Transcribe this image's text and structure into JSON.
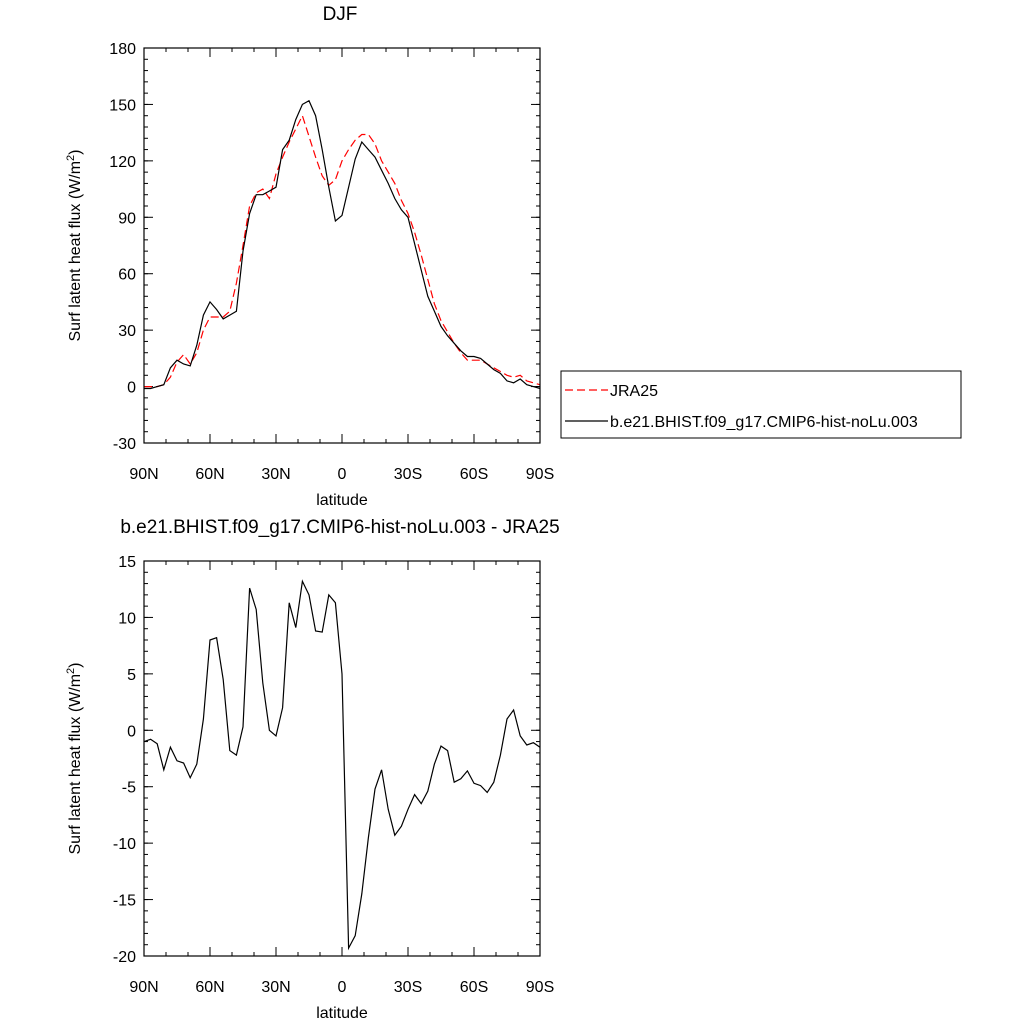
{
  "chart_data": [
    {
      "type": "line",
      "title": "DJF",
      "xlabel": "latitude",
      "ylabel": "Surf latent heat flux (W/m",
      "ylabel_sup": "2",
      "ylabel_close": ")",
      "xlim": [
        90,
        -90
      ],
      "ylim": [
        -30,
        180
      ],
      "x_ticks": [
        90,
        60,
        30,
        0,
        -30,
        -60,
        -90
      ],
      "x_tick_labels": [
        "90N",
        "60N",
        "30N",
        "0",
        "30S",
        "60S",
        "90S"
      ],
      "y_ticks": [
        -30,
        0,
        30,
        60,
        90,
        120,
        150,
        180
      ],
      "y_tick_labels": [
        "-30",
        "0",
        "30",
        "60",
        "90",
        "120",
        "150",
        "180"
      ],
      "legend_position": "right",
      "series": [
        {
          "name": "JRA25",
          "color": "#ff0000",
          "dash": "dashed",
          "x": [
            90,
            87,
            84,
            81,
            78,
            75,
            72,
            69,
            66,
            63,
            60,
            57,
            54,
            51,
            48,
            45,
            42,
            39,
            36,
            33,
            30,
            27,
            24,
            21,
            18,
            15,
            12,
            9,
            6,
            3,
            0,
            -3,
            -6,
            -9,
            -12,
            -15,
            -18,
            -21,
            -24,
            -27,
            -30,
            -33,
            -36,
            -39,
            -42,
            -45,
            -48,
            -51,
            -54,
            -57,
            -60,
            -63,
            -66,
            -69,
            -72,
            -75,
            -78,
            -81,
            -84,
            -87,
            -90
          ],
          "y": [
            0,
            0,
            0,
            1,
            5,
            13,
            17,
            12,
            18,
            30,
            37,
            37,
            37,
            40,
            55,
            75,
            96,
            103,
            105,
            100,
            113,
            122,
            130,
            137,
            144,
            133,
            122,
            112,
            107,
            110,
            120,
            126,
            131,
            134,
            134,
            129,
            120,
            114,
            108,
            99,
            92,
            82,
            70,
            57,
            44,
            35,
            29,
            23,
            18,
            14,
            14,
            14,
            12,
            10,
            8,
            6,
            5,
            6,
            3,
            2,
            1
          ]
        },
        {
          "name": "b.e21.BHIST.f09_g17.CMIP6-hist-noLu.003",
          "color": "#000000",
          "dash": "solid",
          "x": [
            90,
            87,
            84,
            81,
            78,
            75,
            72,
            69,
            66,
            63,
            60,
            57,
            54,
            51,
            48,
            45,
            42,
            39,
            36,
            33,
            30,
            27,
            24,
            21,
            18,
            15,
            12,
            9,
            6,
            3,
            0,
            -3,
            -6,
            -9,
            -12,
            -15,
            -18,
            -21,
            -24,
            -27,
            -30,
            -33,
            -36,
            -39,
            -42,
            -45,
            -48,
            -51,
            -54,
            -57,
            -60,
            -63,
            -66,
            -69,
            -72,
            -75,
            -78,
            -81,
            -84,
            -87,
            -90
          ],
          "y": [
            -1,
            -1,
            0,
            1,
            10,
            14,
            12,
            11,
            22,
            38,
            45,
            41,
            36,
            38,
            40,
            72,
            92,
            102,
            102,
            104,
            106,
            126,
            131,
            142,
            150,
            152,
            144,
            126,
            106,
            88,
            91,
            106,
            121,
            130,
            126,
            122,
            115,
            108,
            100,
            94,
            90,
            76,
            62,
            48,
            40,
            32,
            27,
            23,
            19,
            16,
            16,
            15,
            12,
            9,
            7,
            3,
            2,
            4,
            1,
            0,
            -1
          ]
        }
      ]
    },
    {
      "type": "line",
      "title": "b.e21.BHIST.f09_g17.CMIP6-hist-noLu.003 - JRA25",
      "xlabel": "latitude",
      "ylabel": "Surf latent heat flux (W/m",
      "ylabel_sup": "2",
      "ylabel_close": ")",
      "xlim": [
        90,
        -90
      ],
      "ylim": [
        -20,
        15
      ],
      "x_ticks": [
        90,
        60,
        30,
        0,
        -30,
        -60,
        -90
      ],
      "x_tick_labels": [
        "90N",
        "60N",
        "30N",
        "0",
        "30S",
        "60S",
        "90S"
      ],
      "y_ticks": [
        -20,
        -15,
        -10,
        -5,
        0,
        5,
        10,
        15
      ],
      "y_tick_labels": [
        "-20",
        "-15",
        "-10",
        "-5",
        "0",
        "5",
        "10",
        "15"
      ],
      "series": [
        {
          "color": "#000000",
          "dash": "solid",
          "x": [
            90,
            87,
            84,
            81,
            78,
            75,
            72,
            69,
            66,
            63,
            60,
            57,
            54,
            51,
            48,
            45,
            42,
            39,
            36,
            33,
            30,
            27,
            24,
            21,
            18,
            15,
            12,
            9,
            6,
            3,
            0,
            -3,
            -6,
            -9,
            -12,
            -15,
            -18,
            -21,
            -24,
            -27,
            -30,
            -33,
            -36,
            -39,
            -42,
            -45,
            -48,
            -51,
            -54,
            -57,
            -60,
            -63,
            -66,
            -69,
            -72,
            -75,
            -78,
            -81,
            -84,
            -87,
            -90
          ],
          "y": [
            -1.0,
            -0.8,
            -1.2,
            -3.5,
            -1.5,
            -2.7,
            -2.9,
            -4.2,
            -3.0,
            1.0,
            8.0,
            8.2,
            4.5,
            -1.8,
            -2.2,
            0.3,
            12.6,
            10.7,
            4.2,
            0.0,
            -0.5,
            2.0,
            11.3,
            9.1,
            13.2,
            12.0,
            8.8,
            8.7,
            12.0,
            11.3,
            5.0,
            -19.3,
            -18.2,
            -14.5,
            -9.5,
            -5.2,
            -3.5,
            -7.0,
            -9.3,
            -8.5,
            -7.0,
            -5.7,
            -6.5,
            -5.4,
            -3.0,
            -1.4,
            -1.8,
            -4.6,
            -4.3,
            -3.6,
            -4.7,
            -4.9,
            -5.5,
            -4.6,
            -2.2,
            1.0,
            1.8,
            -0.5,
            -1.3,
            -1.1,
            -1.5
          ]
        }
      ]
    }
  ]
}
